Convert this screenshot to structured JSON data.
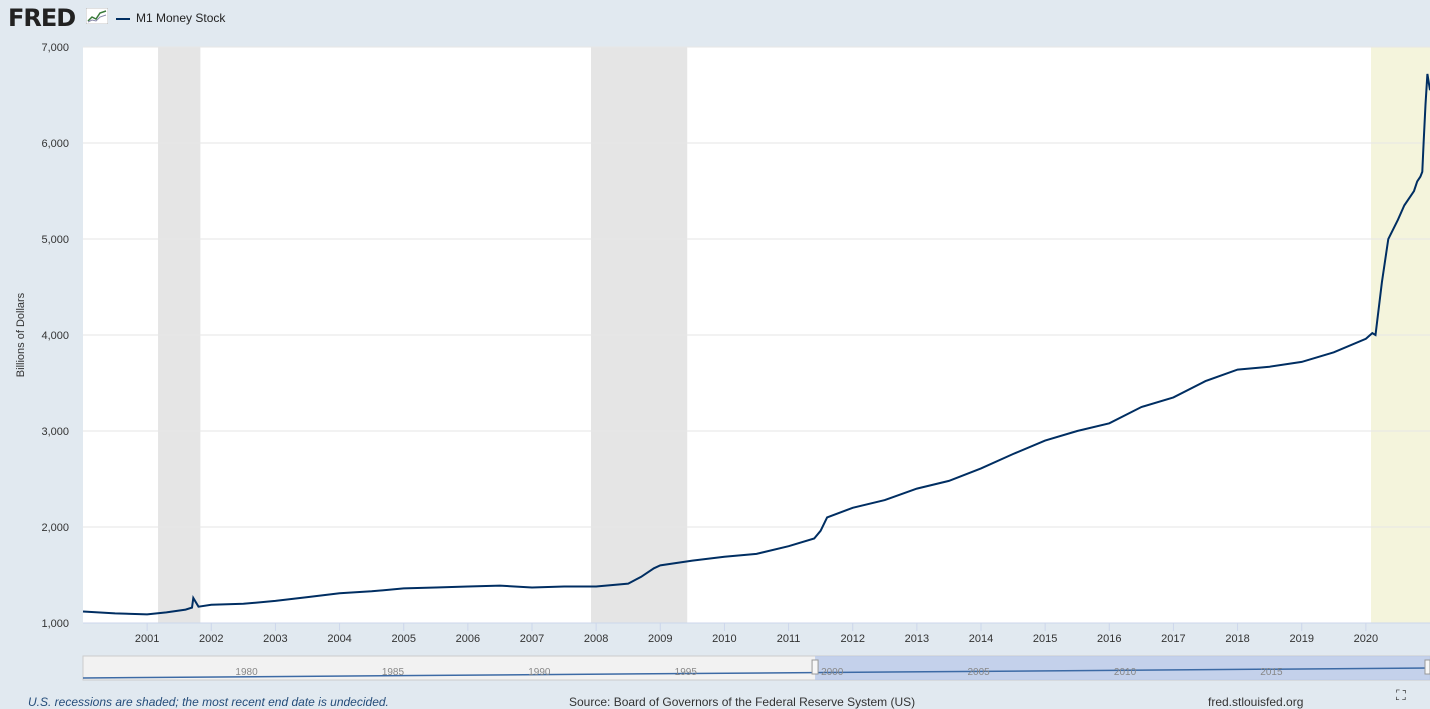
{
  "header": {
    "logo": "FRED",
    "logo_icon": "line-chart-icon",
    "legend_label": "M1 Money Stock"
  },
  "footer": {
    "recession_note": "U.S. recessions are shaded; the most recent end date is undecided.",
    "source": "Source: Board of Governors of the Federal Reserve System (US)",
    "site": "fred.stlouisfed.org",
    "fullscreen_icon": "fullscreen-icon"
  },
  "colors": {
    "series": "#002e62",
    "recession": "#e5e5e5",
    "recent": "#f4f4dc",
    "background": "#e1e9f0"
  },
  "chart_data": {
    "type": "line",
    "ylabel": "Billions of Dollars",
    "ylim": [
      1000,
      7000
    ],
    "yticks": [
      1000,
      2000,
      3000,
      4000,
      5000,
      6000,
      7000
    ],
    "ytick_labels": [
      "1,000",
      "2,000",
      "3,000",
      "4,000",
      "5,000",
      "6,000",
      "7,000"
    ],
    "xlim": [
      2000.0,
      2021.0
    ],
    "xticks": [
      2001,
      2002,
      2003,
      2004,
      2005,
      2006,
      2007,
      2008,
      2009,
      2010,
      2011,
      2012,
      2013,
      2014,
      2015,
      2016,
      2017,
      2018,
      2019,
      2020
    ],
    "xtick_labels": [
      "2001",
      "2002",
      "2003",
      "2004",
      "2005",
      "2006",
      "2007",
      "2008",
      "2009",
      "2010",
      "2011",
      "2012",
      "2013",
      "2014",
      "2015",
      "2016",
      "2017",
      "2018",
      "2019",
      "2020"
    ],
    "grid": true,
    "legend_position": "top-left",
    "recessions": [
      [
        2001.17,
        2001.83
      ],
      [
        2007.92,
        2009.42
      ]
    ],
    "recent_shading": [
      2020.08,
      2021.0
    ],
    "series": [
      {
        "name": "M1 Money Stock",
        "x": [
          2000.0,
          2000.5,
          2001.0,
          2001.3,
          2001.6,
          2001.7,
          2001.72,
          2001.8,
          2002.0,
          2002.5,
          2003.0,
          2003.5,
          2004.0,
          2004.5,
          2005.0,
          2005.5,
          2006.0,
          2006.5,
          2007.0,
          2007.5,
          2008.0,
          2008.5,
          2008.7,
          2008.9,
          2009.0,
          2009.5,
          2010.0,
          2010.5,
          2011.0,
          2011.4,
          2011.5,
          2011.6,
          2012.0,
          2012.5,
          2013.0,
          2013.5,
          2014.0,
          2014.5,
          2015.0,
          2015.5,
          2016.0,
          2016.5,
          2017.0,
          2017.5,
          2018.0,
          2018.5,
          2019.0,
          2019.5,
          2020.0,
          2020.1,
          2020.15,
          2020.25,
          2020.35,
          2020.5,
          2020.6,
          2020.7,
          2020.75,
          2020.8,
          2020.85,
          2020.88,
          2020.9,
          2020.93,
          2020.96,
          2021.0
        ],
        "values": [
          1120,
          1100,
          1090,
          1110,
          1140,
          1160,
          1260,
          1170,
          1190,
          1200,
          1230,
          1270,
          1310,
          1330,
          1360,
          1370,
          1380,
          1390,
          1370,
          1380,
          1380,
          1410,
          1480,
          1570,
          1600,
          1650,
          1690,
          1720,
          1800,
          1880,
          1960,
          2100,
          2200,
          2280,
          2400,
          2480,
          2610,
          2760,
          2900,
          3000,
          3080,
          3250,
          3350,
          3520,
          3640,
          3670,
          3720,
          3820,
          3960,
          4020,
          4000,
          4550,
          5000,
          5200,
          5350,
          5450,
          5500,
          5600,
          5650,
          5700,
          6000,
          6400,
          6720,
          6550
        ]
      }
    ]
  },
  "navigator": {
    "labels": [
      "1980",
      "1985",
      "1990",
      "1995",
      "2000",
      "2005",
      "2010",
      "2015"
    ]
  }
}
